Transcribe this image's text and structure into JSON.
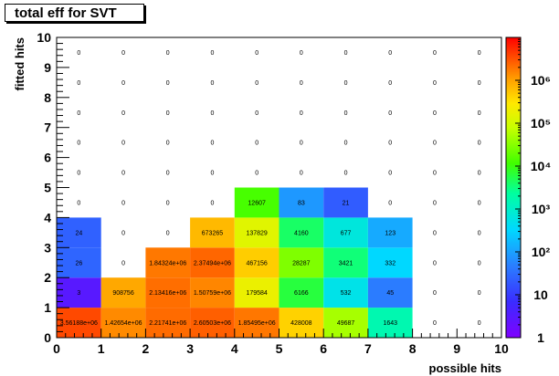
{
  "chart_data": {
    "type": "heatmap",
    "title": "total eff for SVT",
    "xlabel": "possible hits",
    "ylabel": "fitted hits",
    "xlim": [
      0,
      10
    ],
    "ylim": [
      0,
      10
    ],
    "x_ticks": [
      "0",
      "1",
      "2",
      "3",
      "4",
      "5",
      "6",
      "7",
      "8",
      "9",
      "10"
    ],
    "y_ticks": [
      "0",
      "1",
      "2",
      "3",
      "4",
      "5",
      "6",
      "7",
      "8",
      "9",
      "10"
    ],
    "z_scale": "log",
    "z_range": [
      1,
      10000000
    ],
    "palette_ticks": [
      {
        "value": 1,
        "label": "1"
      },
      {
        "value": 10,
        "label": "10"
      },
      {
        "value": 100,
        "label": "10²"
      },
      {
        "value": 1000,
        "label": "10³"
      },
      {
        "value": 10000,
        "label": "10⁴"
      },
      {
        "value": 100000,
        "label": "10⁵"
      },
      {
        "value": 1000000,
        "label": "10⁶"
      }
    ],
    "cells": [
      {
        "x": 0,
        "y": 0,
        "value": 3561880,
        "label": "3.56188e+06"
      },
      {
        "x": 1,
        "y": 0,
        "value": 1426540,
        "label": "1.42654e+06"
      },
      {
        "x": 2,
        "y": 0,
        "value": 2217410,
        "label": "2.21741e+06"
      },
      {
        "x": 3,
        "y": 0,
        "value": 2605030,
        "label": "2.60503e+06"
      },
      {
        "x": 4,
        "y": 0,
        "value": 1854950,
        "label": "1.85495e+06"
      },
      {
        "x": 5,
        "y": 0,
        "value": 428008,
        "label": "428008"
      },
      {
        "x": 6,
        "y": 0,
        "value": 49687,
        "label": "49687"
      },
      {
        "x": 7,
        "y": 0,
        "value": 1643,
        "label": "1643"
      },
      {
        "x": 8,
        "y": 0,
        "value": 0,
        "label": "0"
      },
      {
        "x": 9,
        "y": 0,
        "value": 0,
        "label": "0"
      },
      {
        "x": 0,
        "y": 1,
        "value": 3,
        "label": "3"
      },
      {
        "x": 1,
        "y": 1,
        "value": 908756,
        "label": "908756"
      },
      {
        "x": 2,
        "y": 1,
        "value": 2134160,
        "label": "2.13416e+06"
      },
      {
        "x": 3,
        "y": 1,
        "value": 1507590,
        "label": "1.50759e+06"
      },
      {
        "x": 4,
        "y": 1,
        "value": 179584,
        "label": "179584"
      },
      {
        "x": 5,
        "y": 1,
        "value": 6166,
        "label": "6166"
      },
      {
        "x": 6,
        "y": 1,
        "value": 532,
        "label": "532"
      },
      {
        "x": 7,
        "y": 1,
        "value": 45,
        "label": "45"
      },
      {
        "x": 8,
        "y": 1,
        "value": 0,
        "label": "0"
      },
      {
        "x": 9,
        "y": 1,
        "value": 0,
        "label": "0"
      },
      {
        "x": 0,
        "y": 2,
        "value": 26,
        "label": "26"
      },
      {
        "x": 1,
        "y": 2,
        "value": 0,
        "label": "0"
      },
      {
        "x": 2,
        "y": 2,
        "value": 1843240,
        "label": "1.84324e+06"
      },
      {
        "x": 3,
        "y": 2,
        "value": 2374940,
        "label": "2.37494e+06"
      },
      {
        "x": 4,
        "y": 2,
        "value": 467156,
        "label": "467156"
      },
      {
        "x": 5,
        "y": 2,
        "value": 28287,
        "label": "28287"
      },
      {
        "x": 6,
        "y": 2,
        "value": 3421,
        "label": "3421"
      },
      {
        "x": 7,
        "y": 2,
        "value": 332,
        "label": "332"
      },
      {
        "x": 8,
        "y": 2,
        "value": 0,
        "label": "0"
      },
      {
        "x": 9,
        "y": 2,
        "value": 0,
        "label": "0"
      },
      {
        "x": 0,
        "y": 3,
        "value": 24,
        "label": "24"
      },
      {
        "x": 1,
        "y": 3,
        "value": 0,
        "label": "0"
      },
      {
        "x": 2,
        "y": 3,
        "value": 0,
        "label": "0"
      },
      {
        "x": 3,
        "y": 3,
        "value": 673265,
        "label": "673265"
      },
      {
        "x": 4,
        "y": 3,
        "value": 137829,
        "label": "137829"
      },
      {
        "x": 5,
        "y": 3,
        "value": 4160,
        "label": "4160"
      },
      {
        "x": 6,
        "y": 3,
        "value": 677,
        "label": "677"
      },
      {
        "x": 7,
        "y": 3,
        "value": 123,
        "label": "123"
      },
      {
        "x": 8,
        "y": 3,
        "value": 0,
        "label": "0"
      },
      {
        "x": 9,
        "y": 3,
        "value": 0,
        "label": "0"
      },
      {
        "x": 0,
        "y": 4,
        "value": 0,
        "label": "0"
      },
      {
        "x": 1,
        "y": 4,
        "value": 0,
        "label": "0"
      },
      {
        "x": 2,
        "y": 4,
        "value": 0,
        "label": "0"
      },
      {
        "x": 3,
        "y": 4,
        "value": 0,
        "label": "0"
      },
      {
        "x": 4,
        "y": 4,
        "value": 12607,
        "label": "12607"
      },
      {
        "x": 5,
        "y": 4,
        "value": 83,
        "label": "83"
      },
      {
        "x": 6,
        "y": 4,
        "value": 21,
        "label": "21"
      },
      {
        "x": 7,
        "y": 4,
        "value": 0,
        "label": "0"
      },
      {
        "x": 8,
        "y": 4,
        "value": 0,
        "label": "0"
      },
      {
        "x": 9,
        "y": 4,
        "value": 0,
        "label": "0"
      },
      {
        "x": 0,
        "y": 5,
        "value": 0,
        "label": "0"
      },
      {
        "x": 1,
        "y": 5,
        "value": 0,
        "label": "0"
      },
      {
        "x": 2,
        "y": 5,
        "value": 0,
        "label": "0"
      },
      {
        "x": 3,
        "y": 5,
        "value": 0,
        "label": "0"
      },
      {
        "x": 4,
        "y": 5,
        "value": 0,
        "label": "0"
      },
      {
        "x": 5,
        "y": 5,
        "value": 0,
        "label": "0"
      },
      {
        "x": 6,
        "y": 5,
        "value": 0,
        "label": "0"
      },
      {
        "x": 7,
        "y": 5,
        "value": 0,
        "label": "0"
      },
      {
        "x": 8,
        "y": 5,
        "value": 0,
        "label": "0"
      },
      {
        "x": 9,
        "y": 5,
        "value": 0,
        "label": "0"
      },
      {
        "x": 0,
        "y": 6,
        "value": 0,
        "label": "0"
      },
      {
        "x": 1,
        "y": 6,
        "value": 0,
        "label": "0"
      },
      {
        "x": 2,
        "y": 6,
        "value": 0,
        "label": "0"
      },
      {
        "x": 3,
        "y": 6,
        "value": 0,
        "label": "0"
      },
      {
        "x": 4,
        "y": 6,
        "value": 0,
        "label": "0"
      },
      {
        "x": 5,
        "y": 6,
        "value": 0,
        "label": "0"
      },
      {
        "x": 6,
        "y": 6,
        "value": 0,
        "label": "0"
      },
      {
        "x": 7,
        "y": 6,
        "value": 0,
        "label": "0"
      },
      {
        "x": 8,
        "y": 6,
        "value": 0,
        "label": "0"
      },
      {
        "x": 9,
        "y": 6,
        "value": 0,
        "label": "0"
      },
      {
        "x": 0,
        "y": 7,
        "value": 0,
        "label": "0"
      },
      {
        "x": 1,
        "y": 7,
        "value": 0,
        "label": "0"
      },
      {
        "x": 2,
        "y": 7,
        "value": 0,
        "label": "0"
      },
      {
        "x": 3,
        "y": 7,
        "value": 0,
        "label": "0"
      },
      {
        "x": 4,
        "y": 7,
        "value": 0,
        "label": "0"
      },
      {
        "x": 5,
        "y": 7,
        "value": 0,
        "label": "0"
      },
      {
        "x": 6,
        "y": 7,
        "value": 0,
        "label": "0"
      },
      {
        "x": 7,
        "y": 7,
        "value": 0,
        "label": "0"
      },
      {
        "x": 8,
        "y": 7,
        "value": 0,
        "label": "0"
      },
      {
        "x": 9,
        "y": 7,
        "value": 0,
        "label": "0"
      },
      {
        "x": 0,
        "y": 8,
        "value": 0,
        "label": "0"
      },
      {
        "x": 1,
        "y": 8,
        "value": 0,
        "label": "0"
      },
      {
        "x": 2,
        "y": 8,
        "value": 0,
        "label": "0"
      },
      {
        "x": 3,
        "y": 8,
        "value": 0,
        "label": "0"
      },
      {
        "x": 4,
        "y": 8,
        "value": 0,
        "label": "0"
      },
      {
        "x": 5,
        "y": 8,
        "value": 0,
        "label": "0"
      },
      {
        "x": 6,
        "y": 8,
        "value": 0,
        "label": "0"
      },
      {
        "x": 7,
        "y": 8,
        "value": 0,
        "label": "0"
      },
      {
        "x": 8,
        "y": 8,
        "value": 0,
        "label": "0"
      },
      {
        "x": 9,
        "y": 8,
        "value": 0,
        "label": "0"
      },
      {
        "x": 0,
        "y": 9,
        "value": 0,
        "label": "0"
      },
      {
        "x": 1,
        "y": 9,
        "value": 0,
        "label": "0"
      },
      {
        "x": 2,
        "y": 9,
        "value": 0,
        "label": "0"
      },
      {
        "x": 3,
        "y": 9,
        "value": 0,
        "label": "0"
      },
      {
        "x": 4,
        "y": 9,
        "value": 0,
        "label": "0"
      },
      {
        "x": 5,
        "y": 9,
        "value": 0,
        "label": "0"
      },
      {
        "x": 6,
        "y": 9,
        "value": 0,
        "label": "0"
      },
      {
        "x": 7,
        "y": 9,
        "value": 0,
        "label": "0"
      },
      {
        "x": 8,
        "y": 9,
        "value": 0,
        "label": "0"
      },
      {
        "x": 9,
        "y": 9,
        "value": 0,
        "label": "0"
      }
    ]
  }
}
